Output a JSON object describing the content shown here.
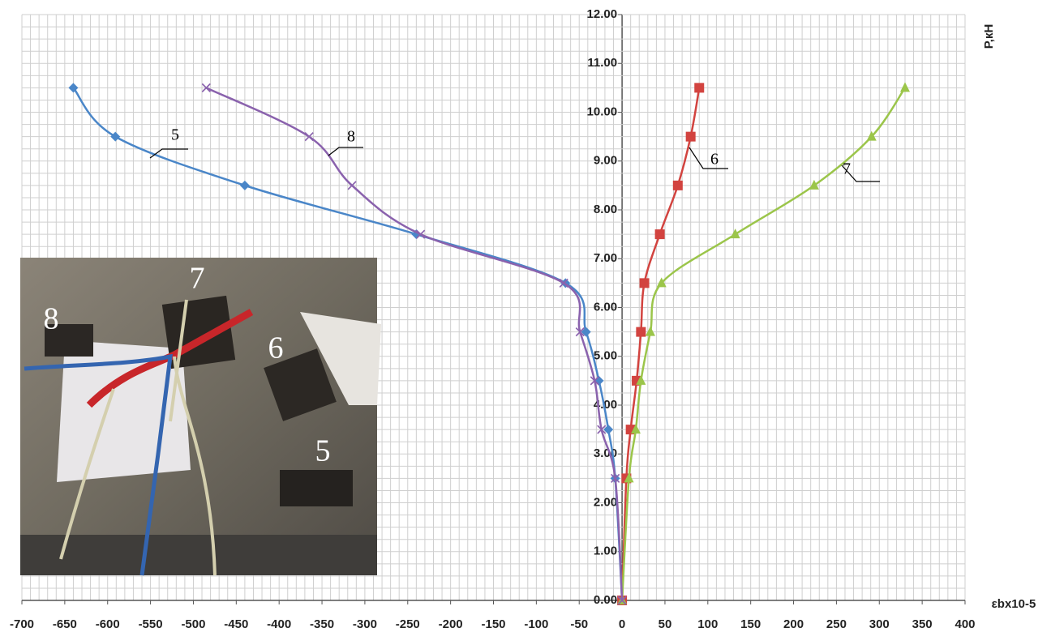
{
  "chart_data": {
    "type": "line",
    "ylabel": "P,кН",
    "xlabel": "εbx10-5",
    "xlim": [
      -700,
      400
    ],
    "ylim": [
      0,
      12
    ],
    "xticks": [
      -700,
      -650,
      -600,
      -550,
      -500,
      -450,
      -400,
      -350,
      -300,
      -250,
      -200,
      -150,
      -100,
      -50,
      0,
      50,
      100,
      150,
      200,
      250,
      300,
      350,
      400
    ],
    "yticks": [
      {
        "value": 0,
        "label": "0.00"
      },
      {
        "value": 1,
        "label": "1.00"
      },
      {
        "value": 2,
        "label": "2.00"
      },
      {
        "value": 3,
        "label": "3.00"
      },
      {
        "value": 4,
        "label": "4.00"
      },
      {
        "value": 5,
        "label": "5.00"
      },
      {
        "value": 6,
        "label": "6.00"
      },
      {
        "value": 7,
        "label": "7.00"
      },
      {
        "value": 8,
        "label": "8.00"
      },
      {
        "value": 9,
        "label": "9.00"
      },
      {
        "value": 10,
        "label": "10.00"
      },
      {
        "value": 11,
        "label": "11.00"
      },
      {
        "value": 12,
        "label": "12.00"
      }
    ],
    "xgrid": [
      -700,
      -690,
      -680,
      -670,
      -660,
      -650,
      -640,
      -630,
      -620,
      -610,
      -600,
      -590,
      -580,
      -570,
      -560,
      -550,
      -540,
      -530,
      -520,
      -510,
      -500,
      -490,
      -480,
      -470,
      -460,
      -450,
      -440,
      -430,
      -420,
      -410,
      -400,
      -390,
      -380,
      -370,
      -360,
      -350,
      -340,
      -330,
      -320,
      -310,
      -300,
      -290,
      -280,
      -270,
      -260,
      -250,
      -240,
      -230,
      -220,
      -210,
      -200,
      -190,
      -180,
      -170,
      -160,
      -150,
      -140,
      -130,
      -120,
      -110,
      -100,
      -90,
      -80,
      -70,
      -60,
      -50,
      -40,
      -30,
      -20,
      -10,
      0,
      10,
      20,
      30,
      40,
      50,
      60,
      70,
      80,
      90,
      100,
      110,
      120,
      130,
      140,
      150,
      160,
      170,
      180,
      190,
      200,
      210,
      220,
      230,
      240,
      250,
      260,
      270,
      280,
      290,
      300,
      310,
      320,
      330,
      340,
      350,
      360,
      370,
      380,
      390,
      400
    ],
    "ygrid": [
      0,
      0.25,
      0.5,
      0.75,
      1,
      1.25,
      1.5,
      1.75,
      2,
      2.25,
      2.5,
      2.75,
      3,
      3.25,
      3.5,
      3.75,
      4,
      4.25,
      4.5,
      4.75,
      5,
      5.25,
      5.5,
      5.75,
      6,
      6.25,
      6.5,
      6.75,
      7,
      7.25,
      7.5,
      7.75,
      8,
      8.25,
      8.5,
      8.75,
      9,
      9.25,
      9.5,
      9.75,
      10,
      10.25,
      10.5,
      10.75,
      11,
      11.25,
      11.5,
      11.75,
      12
    ],
    "grid": true,
    "series": [
      {
        "name": "5",
        "color": "#4a86c8",
        "marker": "diamond",
        "x": [
          0,
          -8,
          -16,
          -27,
          -42,
          -66,
          -240,
          -440,
          -591,
          -640
        ],
        "values": [
          0,
          2.5,
          3.5,
          4.5,
          5.5,
          6.5,
          7.5,
          8.5,
          9.5,
          10.5
        ]
      },
      {
        "name": "6",
        "color": "#d2433f",
        "marker": "square",
        "x": [
          0,
          5,
          10,
          17,
          22,
          26,
          44,
          65,
          80,
          90
        ],
        "values": [
          0,
          2.5,
          3.5,
          4.5,
          5.5,
          6.5,
          7.5,
          8.5,
          9.5,
          10.5
        ]
      },
      {
        "name": "7",
        "color": "#9bc54a",
        "marker": "triangle",
        "x": [
          0,
          8,
          16,
          22,
          33,
          46,
          132,
          224,
          291,
          330
        ],
        "values": [
          0,
          2.5,
          3.5,
          4.5,
          5.5,
          6.5,
          7.5,
          8.5,
          9.5,
          10.5
        ]
      },
      {
        "name": "8",
        "color": "#8a62ad",
        "marker": "x",
        "x": [
          0,
          -8,
          -24,
          -32,
          -49,
          -68,
          -235,
          -315,
          -365,
          -485
        ],
        "values": [
          0,
          2.5,
          3.5,
          4.5,
          5.5,
          6.5,
          7.5,
          8.5,
          9.5,
          10.5
        ]
      }
    ],
    "inset_photo": {
      "labels": [
        "8",
        "7",
        "6",
        "5"
      ]
    }
  }
}
